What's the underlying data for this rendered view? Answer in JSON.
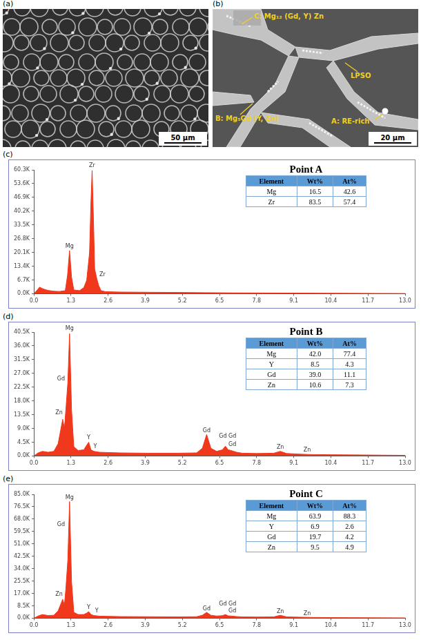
{
  "panels": [
    {
      "label": "(a)",
      "scale_bar": "50 μm"
    },
    {
      "label": "(b)",
      "scale_bar": "20 μm",
      "annotations": [
        "C: Mg₁₂ (Gd, Y) Zn",
        "LPSO",
        "B: Mg₅Gd (Y, Zn)",
        "A: RE-rich"
      ]
    }
  ],
  "chart_data": [
    {
      "label": "(c)",
      "type": "area",
      "color": "#f0381c",
      "grid": false,
      "x": [
        0,
        0.1,
        0.2,
        0.3,
        0.4,
        0.5,
        0.7,
        0.9,
        1.1,
        1.18,
        1.25,
        1.32,
        1.4,
        1.6,
        1.75,
        1.85,
        1.95,
        2.0,
        2.04,
        2.08,
        2.13,
        2.2,
        2.27,
        2.35,
        2.5,
        3.0,
        4,
        5,
        6,
        7,
        8,
        9,
        10,
        11,
        12,
        13
      ],
      "values": [
        0,
        1500,
        3200,
        2500,
        2000,
        1600,
        1200,
        1100,
        1500,
        9000,
        21000,
        8000,
        1800,
        1500,
        3000,
        6500,
        20000,
        45000,
        60000,
        40000,
        12000,
        7500,
        4000,
        1500,
        1000,
        800,
        700,
        600,
        500,
        400,
        350,
        300,
        250,
        200,
        150,
        100
      ],
      "xlim": [
        0,
        13
      ],
      "xticks": [
        {
          "value": 0,
          "label": "0.0"
        },
        1.3,
        2.6,
        3.9,
        5.2,
        6.5,
        7.8,
        9.1,
        10.4,
        11.7,
        {
          "value": 13,
          "label": "13.0"
        }
      ],
      "ylim": [
        0,
        60300
      ],
      "yticks": [
        {
          "value": 0,
          "label": "0.0K"
        },
        {
          "value": 6700,
          "label": "6.7K"
        },
        {
          "value": 13400,
          "label": "13.4K"
        },
        {
          "value": 20100,
          "label": "20.1K"
        },
        {
          "value": 26800,
          "label": "26.8K"
        },
        {
          "value": 33500,
          "label": "33.5K"
        },
        {
          "value": 40200,
          "label": "40.2K"
        },
        {
          "value": 46900,
          "label": "46.9K"
        },
        {
          "value": 53600,
          "label": "53.6K"
        },
        {
          "value": 60300,
          "label": "60.3K"
        }
      ],
      "annotations": [
        {
          "text": "Mg",
          "x": 1.25,
          "y": 21500
        },
        {
          "text": "Zr",
          "x": 2.04,
          "y": 60500
        },
        {
          "text": "Zr",
          "x": 2.4,
          "y": 7500
        }
      ],
      "table": {
        "title": "Point A",
        "columns": [
          "Element",
          "Wt%",
          "At%"
        ],
        "rows": [
          [
            "Mg",
            "16.5",
            "42.6"
          ],
          [
            "Zr",
            "83.5",
            "57.4"
          ]
        ]
      }
    },
    {
      "label": "(d)",
      "type": "area",
      "color": "#f0381c",
      "grid": false,
      "x": [
        0,
        0.15,
        0.3,
        0.5,
        0.7,
        0.85,
        0.95,
        1.01,
        1.07,
        1.12,
        1.19,
        1.25,
        1.32,
        1.4,
        1.55,
        1.75,
        1.85,
        1.92,
        2.0,
        2.1,
        2.3,
        3,
        4,
        5,
        5.7,
        5.9,
        6.05,
        6.2,
        6.4,
        6.6,
        6.71,
        6.8,
        6.9,
        7.1,
        7.3,
        7.8,
        8.4,
        8.63,
        8.85,
        9.3,
        9.57,
        9.8,
        10.4,
        11.7,
        13
      ],
      "values": [
        0,
        1000,
        1500,
        1200,
        1500,
        4000,
        9000,
        12000,
        9000,
        15000,
        24000,
        40000,
        15000,
        3000,
        1800,
        2000,
        3500,
        4500,
        2000,
        1500,
        1200,
        1000,
        900,
        900,
        1000,
        2500,
        7000,
        2500,
        1500,
        2000,
        3200,
        2000,
        1800,
        1200,
        900,
        800,
        900,
        1500,
        800,
        600,
        500,
        450,
        400,
        300,
        200
      ],
      "xlim": [
        0,
        13
      ],
      "xticks": [
        {
          "value": 0,
          "label": "0.0"
        },
        1.3,
        2.6,
        3.9,
        5.2,
        6.5,
        7.8,
        9.1,
        10.4,
        11.7,
        {
          "value": 13,
          "label": "13.0"
        }
      ],
      "ylim": [
        0,
        40500
      ],
      "yticks": [
        {
          "value": 0,
          "label": "0.0K"
        },
        {
          "value": 4500,
          "label": "4.5K"
        },
        {
          "value": 9000,
          "label": "9.0K"
        },
        {
          "value": 13500,
          "label": "13.5K"
        },
        {
          "value": 18000,
          "label": "18.0K"
        },
        {
          "value": 22500,
          "label": "22.5K"
        },
        {
          "value": 27000,
          "label": "27.0K"
        },
        {
          "value": 31500,
          "label": "31.5K"
        },
        {
          "value": 36000,
          "label": "36.0K"
        },
        {
          "value": 40500,
          "label": "40.5K"
        }
      ],
      "annotations": [
        {
          "text": "Mg",
          "x": 1.25,
          "y": 40500
        },
        {
          "text": "Gd",
          "x": 0.95,
          "y": 24000
        },
        {
          "text": "Zn",
          "x": 0.88,
          "y": 13000
        },
        {
          "text": "Y",
          "x": 1.92,
          "y": 4800
        },
        {
          "text": "Y",
          "x": 2.15,
          "y": 2000
        },
        {
          "text": "Gd",
          "x": 6.05,
          "y": 7200
        },
        {
          "text": "Gd",
          "x": 6.62,
          "y": 5200
        },
        {
          "text": "Gd",
          "x": 6.95,
          "y": 5200
        },
        {
          "text": "Gd",
          "x": 6.95,
          "y": 2500
        },
        {
          "text": "Zn",
          "x": 8.63,
          "y": 1700
        },
        {
          "text": "Zn",
          "x": 9.57,
          "y": 700
        }
      ],
      "table": {
        "title": "Point B",
        "columns": [
          "Element",
          "Wt%",
          "At%"
        ],
        "rows": [
          [
            "Mg",
            "42.0",
            "77.4"
          ],
          [
            "Y",
            "8.5",
            "4.3"
          ],
          [
            "Gd",
            "39.0",
            "11.1"
          ],
          [
            "Zn",
            "10.6",
            "7.3"
          ]
        ]
      }
    },
    {
      "label": "(e)",
      "type": "area",
      "color": "#f0381c",
      "grid": false,
      "x": [
        0,
        0.15,
        0.3,
        0.5,
        0.7,
        0.85,
        0.95,
        1.01,
        1.07,
        1.12,
        1.19,
        1.25,
        1.32,
        1.4,
        1.55,
        1.75,
        1.85,
        1.92,
        2.0,
        2.1,
        2.3,
        3,
        4,
        5,
        5.7,
        5.9,
        6.05,
        6.2,
        6.4,
        6.6,
        6.71,
        6.8,
        6.9,
        7.1,
        7.3,
        7.8,
        8.4,
        8.63,
        8.85,
        9.3,
        9.57,
        9.8,
        10.4,
        11.7,
        13
      ],
      "values": [
        0,
        1500,
        2500,
        1800,
        2000,
        5000,
        10000,
        13000,
        9000,
        20000,
        40000,
        80000,
        25000,
        4000,
        2500,
        2500,
        3500,
        4500,
        2500,
        1800,
        1400,
        1100,
        1000,
        900,
        1000,
        2000,
        4000,
        2000,
        1500,
        1700,
        2500,
        1600,
        1500,
        1100,
        900,
        800,
        900,
        2000,
        900,
        700,
        600,
        500,
        400,
        300,
        200
      ],
      "xlim": [
        0,
        13
      ],
      "xticks": [
        {
          "value": 0,
          "label": "0.0"
        },
        1.3,
        2.6,
        3.9,
        5.2,
        6.5,
        7.8,
        9.1,
        10.4,
        11.7,
        {
          "value": 13,
          "label": "13.0"
        }
      ],
      "ylim": [
        0,
        85000
      ],
      "yticks": [
        {
          "value": 0,
          "label": "0.0K"
        },
        {
          "value": 8500,
          "label": "8.5K"
        },
        {
          "value": 17000,
          "label": "17.0K"
        },
        {
          "value": 25500,
          "label": "25.5K"
        },
        {
          "value": 34000,
          "label": "34.0K"
        },
        {
          "value": 42500,
          "label": "42.5K"
        },
        {
          "value": 51000,
          "label": "51.0K"
        },
        {
          "value": 59500,
          "label": "59.5K"
        },
        {
          "value": 68000,
          "label": "68.0K"
        },
        {
          "value": 76500,
          "label": "76.5K"
        },
        {
          "value": 85000,
          "label": "85.0K"
        }
      ],
      "annotations": [
        {
          "text": "Mg",
          "x": 1.25,
          "y": 80500
        },
        {
          "text": "Gd",
          "x": 0.95,
          "y": 62000
        },
        {
          "text": "Zn",
          "x": 0.88,
          "y": 14000
        },
        {
          "text": "Y",
          "x": 1.92,
          "y": 5000
        },
        {
          "text": "Y",
          "x": 2.2,
          "y": 2400
        },
        {
          "text": "Gd",
          "x": 6.05,
          "y": 4200
        },
        {
          "text": "Gd",
          "x": 6.62,
          "y": 7500
        },
        {
          "text": "Gd",
          "x": 6.95,
          "y": 7500
        },
        {
          "text": "Gd",
          "x": 6.95,
          "y": 2800
        },
        {
          "text": "Zn",
          "x": 8.63,
          "y": 2300
        },
        {
          "text": "Zn",
          "x": 9.57,
          "y": 900
        }
      ],
      "table": {
        "title": "Point C",
        "columns": [
          "Element",
          "Wt%",
          "At%"
        ],
        "rows": [
          [
            "Mg",
            "63.9",
            "88.3"
          ],
          [
            "Y",
            "6.9",
            "2.6"
          ],
          [
            "Gd",
            "19.7",
            "4.2"
          ],
          [
            "Zn",
            "9.5",
            "4.9"
          ]
        ]
      }
    }
  ]
}
